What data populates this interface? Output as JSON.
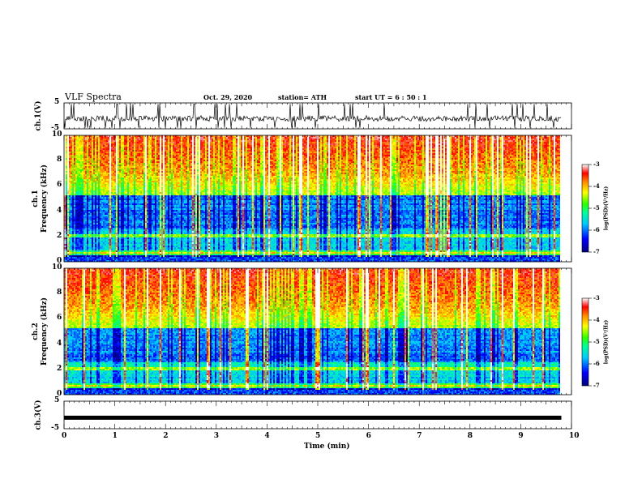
{
  "header": {
    "title": "VLF Spectra",
    "date": "Oct. 29, 2020",
    "station": "station= ATH",
    "start": "start  UT =  6 : 50 : 1"
  },
  "chart_data": [
    {
      "type": "line",
      "ylabel": "ch.1(V)",
      "ylim": [
        -5,
        5
      ],
      "yticks": [
        "5",
        "-5"
      ],
      "color": "#000000",
      "description_values": {
        "baseline_V": -1.0,
        "noise_range_V": [
          -3.5,
          4.5
        ]
      }
    },
    {
      "type": "heatmap",
      "ylabel": "ch.1\nFrequency (kHz)",
      "ylim": [
        0,
        10
      ],
      "yticks": [
        "0",
        "2",
        "4",
        "6",
        "8",
        "10"
      ],
      "xlim": [
        0,
        10
      ],
      "colorbar": {
        "label": "log(PSD)(V²/Hz)",
        "range": [
          -7,
          -3
        ],
        "ticks": [
          "-3",
          "-4",
          "-5",
          "-6",
          "-7"
        ]
      }
    },
    {
      "type": "heatmap",
      "ylabel": "ch.2\nFrequency (kHz)",
      "ylim": [
        0,
        10
      ],
      "yticks": [
        "0",
        "2",
        "4",
        "6",
        "8",
        "10"
      ],
      "xlim": [
        0,
        10
      ],
      "colorbar": {
        "label": "log(PSD)(V²/Hz)",
        "range": [
          -7,
          -3
        ],
        "ticks": [
          "-3",
          "-4",
          "-5",
          "-6",
          "-7"
        ]
      }
    },
    {
      "type": "line",
      "ylabel": "ch.3(V)",
      "ylim": [
        -5,
        5
      ],
      "yticks": [
        "5",
        "-5"
      ],
      "color": "#000000",
      "description_values": {
        "baseline_V": -1.0
      }
    }
  ],
  "xaxis": {
    "label": "Time (min)",
    "range": [
      0,
      10
    ],
    "ticks": [
      "0",
      "1",
      "2",
      "3",
      "4",
      "5",
      "6",
      "7",
      "8",
      "9",
      "10"
    ],
    "data_end_min": 9.8
  }
}
